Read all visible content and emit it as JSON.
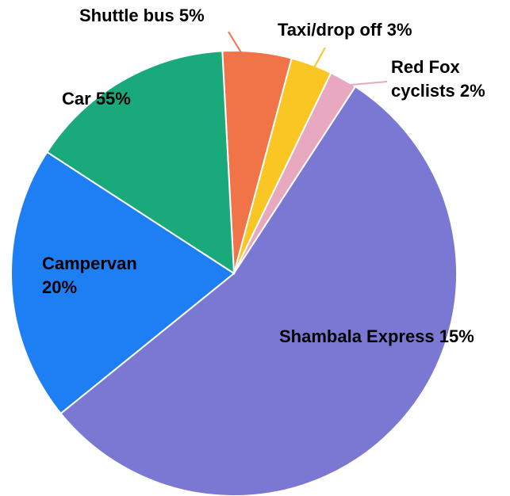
{
  "chart_data": {
    "type": "pie",
    "categories": [
      "Shuttle bus",
      "Taxi/drop off",
      "Red Fox cyclists",
      "Car",
      "Campervan",
      "Shambala Express"
    ],
    "values": [
      5,
      3,
      2,
      55,
      20,
      15
    ],
    "value_labels": [
      "5%",
      "3%",
      "2%",
      "55%",
      "20%",
      "15%"
    ],
    "colors": [
      "#f07448",
      "#f9c623",
      "#e8a8c0",
      "#7b78d4",
      "#1e7ff5",
      "#19a97b"
    ]
  }
}
